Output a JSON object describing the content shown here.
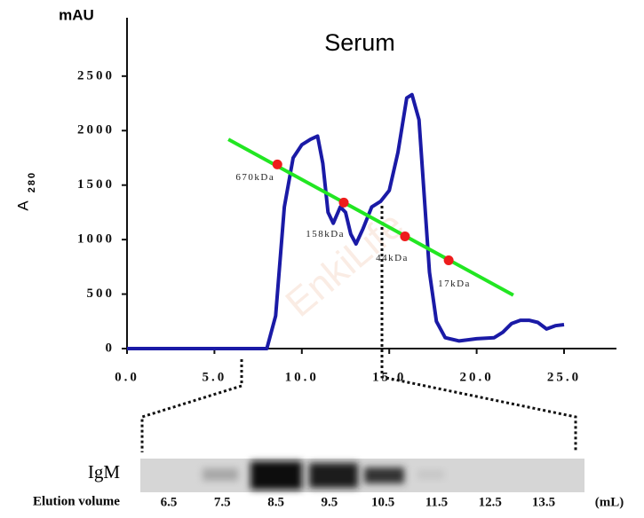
{
  "watermark": "EnkiLife",
  "chart_data": {
    "type": "line",
    "title": "Serum",
    "yunit": "mAU",
    "ylabel": "A",
    "ylabel_sub": "280",
    "xlim": [
      0,
      28
    ],
    "ylim": [
      0,
      3000
    ],
    "xticks": [
      {
        "value": 0,
        "label": "0.0"
      },
      {
        "value": 5,
        "label": "5.0"
      },
      {
        "value": 10,
        "label": "10.0"
      },
      {
        "value": 15,
        "label": "15.0"
      },
      {
        "value": 20,
        "label": "20.0"
      },
      {
        "value": 25,
        "label": "25.0"
      }
    ],
    "yticks": [
      0,
      500,
      1000,
      1500,
      2000,
      2500
    ],
    "curve": {
      "color": "#1a1aa6",
      "x": [
        0,
        8.0,
        8.5,
        9.0,
        9.5,
        10.0,
        10.5,
        10.9,
        11.2,
        11.5,
        11.8,
        12.2,
        12.5,
        12.8,
        13.1,
        13.5,
        14.0,
        14.5,
        15.0,
        15.5,
        16.0,
        16.3,
        16.7,
        17.0,
        17.3,
        17.7,
        18.2,
        19.0,
        20.0,
        21.0,
        21.5,
        22.0,
        22.5,
        23.0,
        23.5,
        24.0,
        24.5,
        25.0
      ],
      "values": [
        0,
        0,
        300,
        1300,
        1750,
        1870,
        1920,
        1950,
        1700,
        1250,
        1150,
        1300,
        1250,
        1050,
        960,
        1100,
        1300,
        1350,
        1450,
        1800,
        2300,
        2330,
        2100,
        1400,
        700,
        250,
        100,
        70,
        90,
        100,
        150,
        230,
        260,
        260,
        240,
        180,
        210,
        220
      ]
    },
    "calibration": {
      "color": "#22e622",
      "x": [
        5.8,
        22.1
      ],
      "values": [
        1920,
        490
      ]
    },
    "standards": {
      "color": "#ee1c1c",
      "x": [
        8.6,
        12.4,
        15.9,
        18.4
      ],
      "values": [
        1690,
        1340,
        1030,
        810
      ],
      "labels": [
        "670kDa",
        "158kDa",
        "44kDa",
        "17kDa"
      ]
    }
  },
  "gel": {
    "label": "IgM",
    "axis_label": "Elution volume",
    "unit": "(mL)",
    "lanes": [
      "6.5",
      "7.5",
      "8.5",
      "9.5",
      "10.5",
      "11.5",
      "12.5",
      "13.5"
    ]
  }
}
